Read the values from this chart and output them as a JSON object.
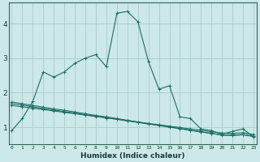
{
  "xlabel": "Humidex (Indice chaleur)",
  "background_color": "#cce8e8",
  "grid_color": "#aacccc",
  "line_color": "#1a6e64",
  "x_ticks": [
    0,
    1,
    2,
    3,
    4,
    5,
    6,
    7,
    8,
    9,
    10,
    11,
    12,
    13,
    14,
    15,
    16,
    17,
    18,
    19,
    20,
    21,
    22,
    23
  ],
  "y_ticks": [
    1,
    2,
    3,
    4
  ],
  "ylim": [
    0.5,
    4.6
  ],
  "xlim": [
    -0.3,
    23.3
  ],
  "line1": {
    "x": [
      0,
      1,
      2,
      3,
      4,
      5,
      6,
      7,
      8,
      9,
      10,
      11,
      12,
      13,
      14,
      15,
      16,
      17,
      18,
      19,
      20,
      21,
      22,
      23
    ],
    "y": [
      0.9,
      1.25,
      1.75,
      2.6,
      2.45,
      2.6,
      2.85,
      3.0,
      3.1,
      2.75,
      4.3,
      4.35,
      4.05,
      2.9,
      2.1,
      2.2,
      1.3,
      1.25,
      0.95,
      0.9,
      0.8,
      0.88,
      0.95,
      0.72
    ]
  },
  "line2": {
    "x": [
      0,
      1,
      2,
      3,
      4,
      5,
      6,
      7,
      8,
      9,
      10,
      11,
      12,
      13,
      14,
      15,
      16,
      17,
      18,
      19,
      20,
      21,
      22,
      23
    ],
    "y": [
      1.73,
      1.68,
      1.63,
      1.58,
      1.53,
      1.49,
      1.44,
      1.39,
      1.34,
      1.3,
      1.25,
      1.2,
      1.15,
      1.1,
      1.06,
      1.01,
      0.96,
      0.91,
      0.86,
      0.82,
      0.77,
      0.76,
      0.78,
      0.73
    ]
  },
  "line3": {
    "x": [
      0,
      1,
      2,
      3,
      4,
      5,
      6,
      7,
      8,
      9,
      10,
      11,
      12,
      13,
      14,
      15,
      16,
      17,
      18,
      19,
      20,
      21,
      22,
      23
    ],
    "y": [
      1.68,
      1.64,
      1.59,
      1.54,
      1.5,
      1.45,
      1.41,
      1.36,
      1.32,
      1.27,
      1.23,
      1.18,
      1.14,
      1.09,
      1.05,
      1.0,
      0.96,
      0.91,
      0.87,
      0.82,
      0.78,
      0.77,
      0.79,
      0.74
    ]
  },
  "line4": {
    "x": [
      0,
      1,
      2,
      3,
      4,
      5,
      6,
      7,
      8,
      9,
      10,
      11,
      12,
      13,
      14,
      15,
      16,
      17,
      18,
      19,
      20,
      21,
      22,
      23
    ],
    "y": [
      1.63,
      1.59,
      1.55,
      1.51,
      1.47,
      1.43,
      1.39,
      1.35,
      1.31,
      1.27,
      1.23,
      1.19,
      1.15,
      1.11,
      1.07,
      1.03,
      0.99,
      0.95,
      0.91,
      0.87,
      0.83,
      0.82,
      0.84,
      0.79
    ]
  }
}
